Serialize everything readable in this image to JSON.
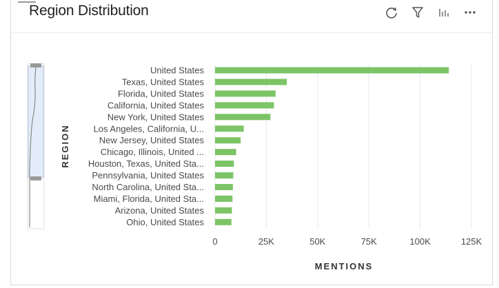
{
  "widget": {
    "title": "Region Distribution"
  },
  "toolbar": {
    "icons": [
      "refresh-icon",
      "filter-icon",
      "chart-type-icon",
      "more-icon"
    ]
  },
  "colors": {
    "bar": "#7cc466",
    "grid": "#e9e9e9",
    "navigator_fill": "#e3edfa",
    "navigator_border": "#b9c9e2"
  },
  "chart_data": {
    "type": "bar",
    "orientation": "horizontal",
    "xlabel": "MENTIONS",
    "ylabel": "REGION",
    "xlim": [
      0,
      125000
    ],
    "x_ticks": [
      {
        "value": 0,
        "label": "0"
      },
      {
        "value": 25000,
        "label": "25K"
      },
      {
        "value": 50000,
        "label": "50K"
      },
      {
        "value": 75000,
        "label": "75K"
      },
      {
        "value": 100000,
        "label": "100K"
      },
      {
        "value": 125000,
        "label": "125K"
      }
    ],
    "grid": true,
    "categories": [
      "United States",
      "Texas, United States",
      "Florida, United States",
      "California, United States",
      "New York, United States",
      "Los Angeles, California, U...",
      "New Jersey, United States",
      "Chicago, Illinois, United ...",
      "Houston, Texas, United Sta...",
      "Pennsylvania, United States",
      "North Carolina, United Sta...",
      "Miami, Florida, United Sta...",
      "Arizona, United States",
      "Ohio, United States"
    ],
    "values": [
      114000,
      35000,
      29500,
      28700,
      27000,
      14000,
      12500,
      10300,
      9200,
      8900,
      8700,
      8500,
      8200,
      8000
    ]
  }
}
